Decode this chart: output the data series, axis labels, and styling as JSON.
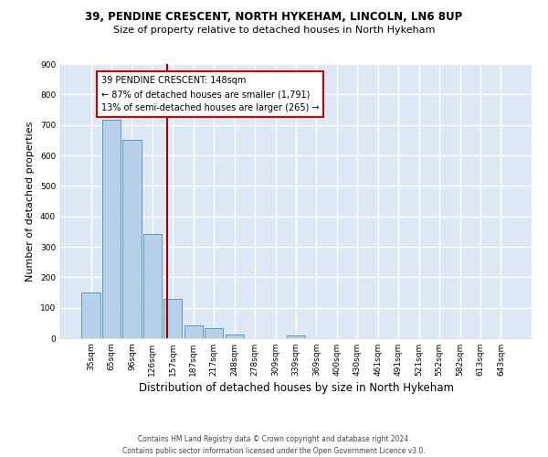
{
  "title1": "39, PENDINE CRESCENT, NORTH HYKEHAM, LINCOLN, LN6 8UP",
  "title2": "Size of property relative to detached houses in North Hykeham",
  "xlabel": "Distribution of detached houses by size in North Hykeham",
  "ylabel": "Number of detached properties",
  "footnote1": "Contains HM Land Registry data © Crown copyright and database right 2024.",
  "footnote2": "Contains public sector information licensed under the Open Government Licence v3.0.",
  "categories": [
    "35sqm",
    "65sqm",
    "96sqm",
    "126sqm",
    "157sqm",
    "187sqm",
    "217sqm",
    "248sqm",
    "278sqm",
    "309sqm",
    "339sqm",
    "369sqm",
    "400sqm",
    "430sqm",
    "461sqm",
    "491sqm",
    "521sqm",
    "552sqm",
    "582sqm",
    "613sqm",
    "643sqm"
  ],
  "values": [
    150,
    718,
    651,
    343,
    130,
    42,
    32,
    12,
    0,
    0,
    9,
    0,
    0,
    0,
    0,
    0,
    0,
    0,
    0,
    0,
    0
  ],
  "bar_color": "#b8d0ea",
  "bar_edge_color": "#5a9aba",
  "background_color": "#dde8f5",
  "grid_color": "#ffffff",
  "annotation_line_color": "#990000",
  "annotation_box_text": "39 PENDINE CRESCENT: 148sqm\n← 87% of detached houses are smaller (1,791)\n13% of semi-detached houses are larger (265) →",
  "ylim": [
    0,
    900
  ],
  "yticks": [
    0,
    100,
    200,
    300,
    400,
    500,
    600,
    700,
    800,
    900
  ],
  "red_line_x": 3.72,
  "title1_fontsize": 8.5,
  "title2_fontsize": 8.0,
  "xlabel_fontsize": 8.5,
  "ylabel_fontsize": 8.0,
  "footnote_fontsize": 5.5,
  "tick_fontsize": 6.5,
  "annot_fontsize": 7.0
}
